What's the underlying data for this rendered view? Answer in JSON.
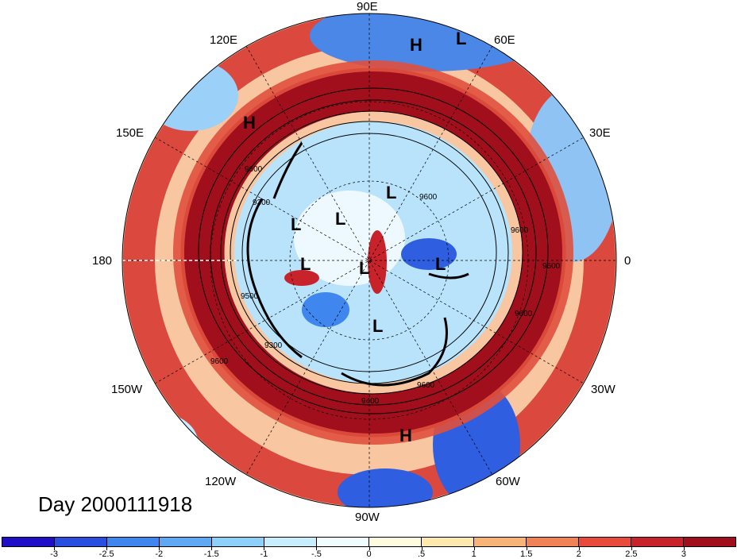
{
  "map": {
    "title": "Day 2000111918",
    "longitude_labels": [
      {
        "text": "90E",
        "name": "lon-label-90e"
      },
      {
        "text": "120E",
        "name": "lon-label-120e"
      },
      {
        "text": "60E",
        "name": "lon-label-60e"
      },
      {
        "text": "150E",
        "name": "lon-label-150e"
      },
      {
        "text": "30E",
        "name": "lon-label-30e"
      },
      {
        "text": "180",
        "name": "lon-label-180"
      },
      {
        "text": "0",
        "name": "lon-label-0"
      },
      {
        "text": "150W",
        "name": "lon-label-150w"
      },
      {
        "text": "30W",
        "name": "lon-label-30w"
      },
      {
        "text": "120W",
        "name": "lon-label-120w"
      },
      {
        "text": "60W",
        "name": "lon-label-60w"
      },
      {
        "text": "90W",
        "name": "lon-label-90w"
      }
    ],
    "pressure_systems": [
      "H",
      "L",
      "H",
      "L",
      "L",
      "L",
      "L",
      "L",
      "L",
      "L",
      "H"
    ],
    "contour_labels": [
      "9600",
      "9300",
      "9500",
      "9300",
      "9600",
      "9600",
      "9600",
      "9400",
      "9600",
      "9600",
      "9600"
    ],
    "colorbar": {
      "colors": [
        "#1f10c8",
        "#2a4fe0",
        "#3f86ee",
        "#5fa8f4",
        "#8fd0fb",
        "#c8eefd",
        "#f0fcff",
        "#fffbdf",
        "#fde9ae",
        "#f8b477",
        "#ef8356",
        "#e84a3c",
        "#c8222a",
        "#a10e1c"
      ],
      "tick_labels": [
        "-3",
        "-2.5",
        "-2",
        "-1.5",
        "-1",
        "-.5",
        "0",
        ".5",
        "1",
        "1.5",
        "2",
        "2.5",
        "3"
      ]
    }
  }
}
